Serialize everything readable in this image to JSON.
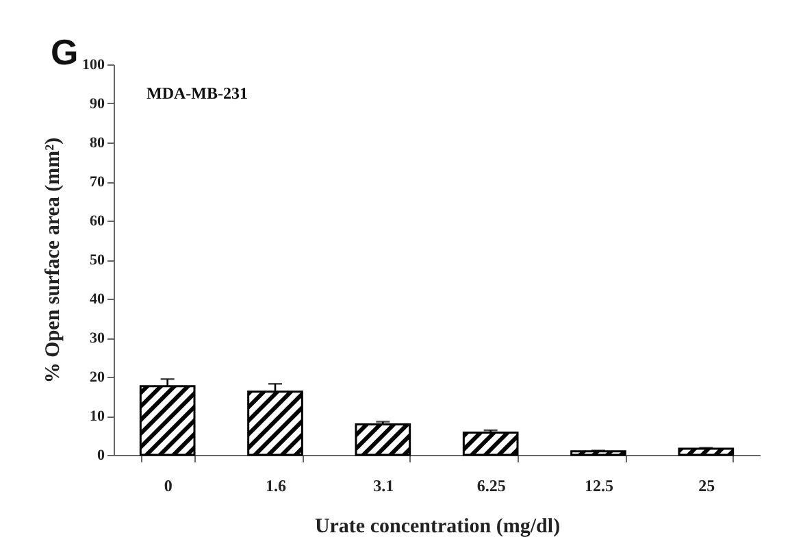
{
  "chart_data": {
    "type": "bar",
    "xlabel": "Urate concentration (mg/dl)",
    "ylabel": "% Open surface area (mm²)",
    "annotations": [
      "G",
      "MDA-MB-231"
    ],
    "categories": [
      "0",
      "1.6",
      "3.1",
      "6.25",
      "12.5",
      "25"
    ],
    "values": [
      17.6,
      16.2,
      7.8,
      5.7,
      0.9,
      1.6
    ],
    "errors": [
      1.8,
      2.0,
      0.7,
      0.6,
      0.2,
      0.2
    ],
    "color": "#000000",
    "ylim": [
      0,
      100
    ],
    "yticks": [
      0,
      10,
      20,
      30,
      40,
      50,
      60,
      70,
      80,
      90,
      100
    ],
    "grid": false
  }
}
